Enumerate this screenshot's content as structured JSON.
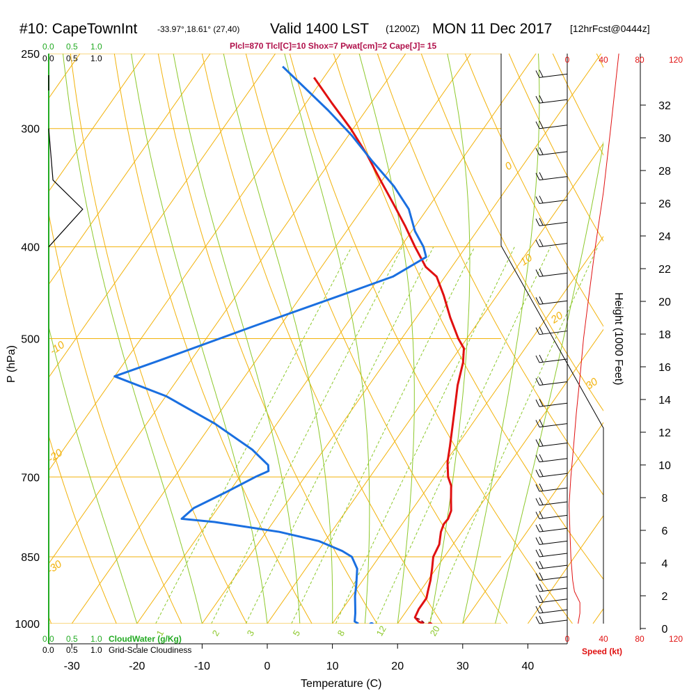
{
  "header": {
    "title_main": "#10: CapeTownInt",
    "title_coords": "-33.97°,18.61° (27,40)",
    "valid_main": "Valid 1400 LST",
    "valid_utc": "(1200Z)",
    "date": "MON 11 Dec 2017",
    "forecast": "[12hrFcst@0444z]",
    "indices": "Plcl=870 Tlcl[C]=10 Shox=7 Pwat[cm]=2 Cape[J]= 15"
  },
  "colors": {
    "temperature": "#e01010",
    "dewpoint": "#1a6fe0",
    "isobar_isotherm": "#f2b20a",
    "dry_adiabat": "#8cc82a",
    "mixing_ratio": "#8cc82a",
    "cloud_water": "#22aa22",
    "wind_speed": "#e01010"
  },
  "legend": {
    "cloud_water_label": "CloudWater (g/Kg)",
    "cloudiness_label": "Grid-Scale Cloudiness",
    "scale_values": [
      "0.0",
      "0.5",
      "1.0"
    ],
    "speed_label": "Speed (kt)",
    "speed_ticks": [
      "0",
      "40",
      "80",
      "120"
    ]
  },
  "chart_data": {
    "type": "line",
    "title": "Valid 1400 LST (1200Z) MON 11 Dec 2017",
    "xlabel": "Temperature (C)",
    "ylabel": "P (hPa)",
    "y2label": "Height (1000 Feet)",
    "xlim": [
      -34,
      45
    ],
    "pressure_ticks": [
      250,
      300,
      400,
      500,
      700,
      850,
      1000
    ],
    "temperature_ticks": [
      -30,
      -20,
      -10,
      0,
      10,
      20,
      30,
      40
    ],
    "height_ticks": [
      0,
      2,
      4,
      6,
      8,
      10,
      12,
      14,
      16,
      18,
      20,
      22,
      24,
      26,
      28,
      30,
      32
    ],
    "isotherm_labels": [
      "-10",
      "-20",
      "-30",
      "0",
      "10",
      "20",
      "30"
    ],
    "mixing_ratio_labels": [
      "1",
      "2",
      "3",
      "5",
      "8",
      "12",
      "20"
    ],
    "series": [
      {
        "name": "Temperature",
        "points": [
          [
            24,
            1000
          ],
          [
            23,
            995
          ],
          [
            22,
            985
          ],
          [
            21.7,
            965
          ],
          [
            21.7,
            940
          ],
          [
            21.2,
            925
          ],
          [
            20.4,
            900
          ],
          [
            19.4,
            875
          ],
          [
            18.3,
            850
          ],
          [
            17.9,
            825
          ],
          [
            16.8,
            800
          ],
          [
            16.4,
            785
          ],
          [
            16.5,
            775
          ],
          [
            16.1,
            760
          ],
          [
            14.9,
            740
          ],
          [
            13.4,
            715
          ],
          [
            12,
            700
          ],
          [
            10.3,
            675
          ],
          [
            9,
            650
          ],
          [
            7.3,
            620
          ],
          [
            5.5,
            590
          ],
          [
            3.6,
            560
          ],
          [
            2,
            530
          ],
          [
            0.6,
            512
          ],
          [
            -1.3,
            500
          ],
          [
            -4.8,
            475
          ],
          [
            -8.2,
            450
          ],
          [
            -11.3,
            430
          ],
          [
            -14,
            420
          ],
          [
            -17.8,
            400
          ],
          [
            -21.6,
            380
          ],
          [
            -25.8,
            360
          ],
          [
            -30.3,
            340
          ],
          [
            -35,
            320
          ],
          [
            -40.4,
            300
          ],
          [
            -46,
            282
          ],
          [
            -51.5,
            265
          ]
        ]
      },
      {
        "name": "Dewpoint",
        "points": [
          [
            14,
            1000
          ],
          [
            13.2,
            995
          ],
          [
            12.4,
            975
          ],
          [
            11.7,
            960
          ],
          [
            10.5,
            935
          ],
          [
            9.5,
            910
          ],
          [
            7.9,
            875
          ],
          [
            5.8,
            850
          ],
          [
            3.7,
            838
          ],
          [
            -1,
            818
          ],
          [
            -8,
            800
          ],
          [
            -19,
            781
          ],
          [
            -24.4,
            775
          ],
          [
            -23.7,
            755
          ],
          [
            -20.3,
            725
          ],
          [
            -17.6,
            700
          ],
          [
            -16.2,
            690
          ],
          [
            -16.9,
            680
          ],
          [
            -21,
            655
          ],
          [
            -29.5,
            615
          ],
          [
            -40,
            575
          ],
          [
            -50,
            548
          ],
          [
            -45,
            528
          ],
          [
            -34,
            485
          ],
          [
            -24,
            450
          ],
          [
            -18,
            430
          ],
          [
            -15,
            410
          ],
          [
            -16.5,
            400
          ],
          [
            -19.5,
            385
          ],
          [
            -22.8,
            365
          ],
          [
            -27.6,
            345
          ],
          [
            -33.5,
            325
          ],
          [
            -39.5,
            305
          ],
          [
            -45.8,
            287
          ],
          [
            -52.5,
            270
          ],
          [
            -57.5,
            258
          ]
        ]
      },
      {
        "name": "Parcel",
        "points": [
          [
            24,
            998
          ],
          [
            23,
            990
          ],
          [
            22,
            985
          ]
        ]
      }
    ],
    "surface": {
      "temperature": 25,
      "dewpoint": 16
    },
    "wind_speed_profile_kt": [
      [
        1000,
        12
      ],
      [
        975,
        14
      ],
      [
        950,
        14
      ],
      [
        925,
        8
      ],
      [
        900,
        6
      ],
      [
        875,
        5
      ],
      [
        850,
        4
      ],
      [
        800,
        3
      ],
      [
        750,
        2
      ],
      [
        700,
        4
      ],
      [
        650,
        7
      ],
      [
        600,
        10
      ],
      [
        550,
        14
      ],
      [
        500,
        18
      ],
      [
        450,
        24
      ],
      [
        400,
        31
      ],
      [
        350,
        40
      ],
      [
        300,
        48
      ],
      [
        250,
        57
      ]
    ],
    "cloud_water_profile": [
      [
        300,
        0
      ],
      [
        340,
        0.05
      ],
      [
        365,
        0.4
      ],
      [
        400,
        0
      ]
    ],
    "wind_barbs_levels": [
      265,
      282,
      300,
      320,
      340,
      360,
      380,
      400,
      430,
      460,
      495,
      530,
      560,
      590,
      620,
      650,
      675,
      700,
      725,
      750,
      775,
      800,
      825,
      850,
      875,
      900,
      925,
      950,
      975,
      1000
    ]
  }
}
